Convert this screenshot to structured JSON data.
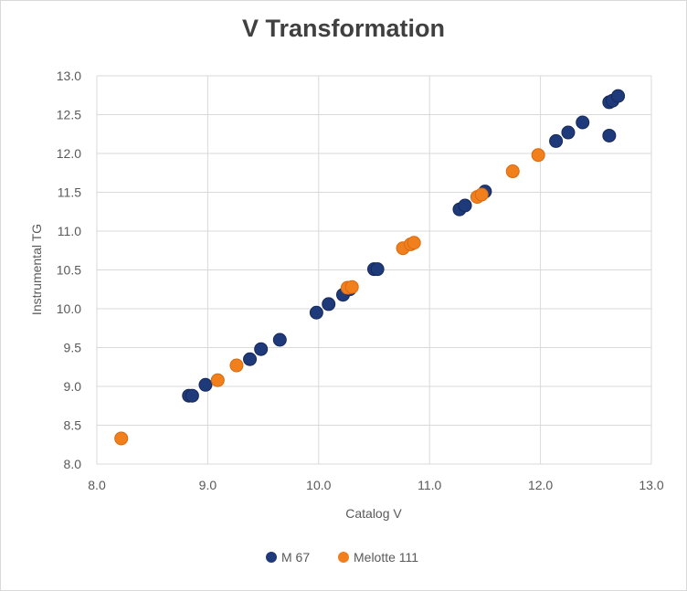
{
  "chart_data": {
    "type": "scatter",
    "title": "V Transformation",
    "xlabel": "Catalog V",
    "ylabel": "Instrumental TG",
    "xlim": [
      8.0,
      13.0
    ],
    "ylim": [
      8.0,
      13.0
    ],
    "x_ticks": [
      "8.0",
      "9.0",
      "10.0",
      "11.0",
      "12.0",
      "13.0"
    ],
    "y_ticks": [
      "8.0",
      "8.5",
      "9.0",
      "9.5",
      "10.0",
      "10.5",
      "11.0",
      "11.5",
      "12.0",
      "12.5",
      "13.0"
    ],
    "grid": true,
    "legend_position": "bottom",
    "series": [
      {
        "name": "M 67",
        "color": "#1f3a7a",
        "points": [
          [
            8.83,
            8.88
          ],
          [
            8.86,
            8.88
          ],
          [
            8.98,
            9.02
          ],
          [
            9.38,
            9.35
          ],
          [
            9.48,
            9.48
          ],
          [
            9.65,
            9.6
          ],
          [
            9.98,
            9.95
          ],
          [
            10.09,
            10.06
          ],
          [
            10.22,
            10.18
          ],
          [
            10.28,
            10.25
          ],
          [
            10.5,
            10.51
          ],
          [
            10.53,
            10.51
          ],
          [
            11.27,
            11.28
          ],
          [
            11.32,
            11.33
          ],
          [
            11.5,
            11.51
          ],
          [
            12.14,
            12.16
          ],
          [
            12.25,
            12.27
          ],
          [
            12.38,
            12.4
          ],
          [
            12.62,
            12.66
          ],
          [
            12.65,
            12.68
          ],
          [
            12.7,
            12.74
          ],
          [
            12.62,
            12.23
          ]
        ]
      },
      {
        "name": "Melotte 111",
        "color": "#f07f1c",
        "points": [
          [
            8.22,
            8.33
          ],
          [
            9.09,
            9.08
          ],
          [
            9.26,
            9.27
          ],
          [
            10.26,
            10.27
          ],
          [
            10.3,
            10.28
          ],
          [
            10.76,
            10.78
          ],
          [
            10.83,
            10.83
          ],
          [
            10.86,
            10.85
          ],
          [
            11.43,
            11.44
          ],
          [
            11.47,
            11.47
          ],
          [
            11.75,
            11.77
          ],
          [
            11.98,
            11.98
          ]
        ]
      }
    ]
  }
}
